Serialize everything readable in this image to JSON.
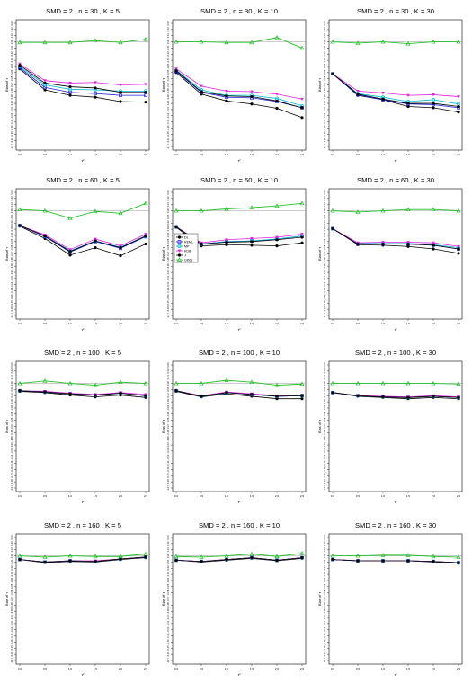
{
  "chart_data": {
    "type": "line",
    "x": [
      0.0,
      0.5,
      1.0,
      1.5,
      2.0,
      2.5
    ],
    "x_tick_labels": [
      "0.0",
      "0.5",
      "1.0",
      "1.5",
      "2.0",
      "2.5"
    ],
    "xlabel": "τ²",
    "ylabel": "Bias of τ",
    "y_tick_labels": [
      "0.03",
      "0.02",
      "0.01",
      "0.00",
      "-0.01",
      "-0.02",
      "-0.03",
      "-0.04",
      "-0.05",
      "-0.06",
      "-0.07",
      "-0.08",
      "-0.09",
      "-0.10",
      "-0.11",
      "-0.12",
      "-0.13",
      "-0.14",
      "-0.15",
      "-0.16",
      "-0.17"
    ],
    "ylim": [
      -0.17,
      0.03
    ],
    "reference_line": 0.0,
    "legend": {
      "placement": "inside panel SMD = 2, n = 60, K = 10, bottom-left",
      "entries": [
        "DL",
        "REML",
        "MP",
        "KDB",
        "J",
        "Gibbs"
      ]
    },
    "colors": {
      "DL": "#000000",
      "REML": "#2020e0",
      "MP": "#00bcd4",
      "KDB": "#e020e0",
      "J": "#000000",
      "Gibbs": "#22c02a",
      "reference": "#999999"
    },
    "panels": [
      {
        "title": "SMD = 2 , n = 30 , K = 5",
        "series": [
          {
            "name": "DL",
            "values": [
              -0.044,
              -0.078,
              -0.087,
              -0.09,
              -0.097,
              -0.098
            ]
          },
          {
            "name": "REML",
            "values": [
              -0.042,
              -0.074,
              -0.082,
              -0.084,
              -0.087,
              -0.087
            ]
          },
          {
            "name": "MP",
            "values": [
              -0.04,
              -0.07,
              -0.077,
              -0.078,
              -0.08,
              -0.08
            ]
          },
          {
            "name": "KDB",
            "values": [
              -0.036,
              -0.063,
              -0.067,
              -0.066,
              -0.07,
              -0.069
            ]
          },
          {
            "name": "J",
            "values": [
              -0.038,
              -0.067,
              -0.073,
              -0.075,
              -0.082,
              -0.082
            ]
          },
          {
            "name": "Gibbs",
            "values": [
              -0.001,
              -0.001,
              -0.001,
              0.002,
              -0.001,
              0.004
            ]
          }
        ]
      },
      {
        "title": "SMD = 2 , n = 30 , K = 10",
        "series": [
          {
            "name": "DL",
            "values": [
              -0.05,
              -0.085,
              -0.096,
              -0.101,
              -0.108,
              -0.123
            ]
          },
          {
            "name": "REML",
            "values": [
              -0.048,
              -0.082,
              -0.09,
              -0.091,
              -0.097,
              -0.107
            ]
          },
          {
            "name": "MP",
            "values": [
              -0.046,
              -0.078,
              -0.087,
              -0.087,
              -0.092,
              -0.104
            ]
          },
          {
            "name": "KDB",
            "values": [
              -0.044,
              -0.072,
              -0.08,
              -0.081,
              -0.085,
              -0.093
            ]
          },
          {
            "name": "J",
            "values": [
              -0.047,
              -0.081,
              -0.088,
              -0.089,
              -0.096,
              -0.107
            ]
          },
          {
            "name": "Gibbs",
            "values": [
              0.0,
              0.0,
              -0.001,
              -0.001,
              0.007,
              -0.01
            ]
          }
        ]
      },
      {
        "title": "SMD = 2 , n = 30 , K = 30",
        "series": [
          {
            "name": "DL",
            "values": [
              -0.052,
              -0.087,
              -0.094,
              -0.105,
              -0.107,
              -0.114
            ]
          },
          {
            "name": "REML",
            "values": [
              -0.052,
              -0.086,
              -0.094,
              -0.101,
              -0.102,
              -0.107
            ]
          },
          {
            "name": "MP",
            "values": [
              -0.052,
              -0.084,
              -0.09,
              -0.097,
              -0.094,
              -0.101
            ]
          },
          {
            "name": "KDB",
            "values": [
              -0.052,
              -0.08,
              -0.083,
              -0.087,
              -0.086,
              -0.089
            ]
          },
          {
            "name": "J",
            "values": [
              -0.052,
              -0.085,
              -0.093,
              -0.1,
              -0.1,
              -0.105
            ]
          },
          {
            "name": "Gibbs",
            "values": [
              0.0,
              -0.002,
              0.0,
              -0.003,
              0.0,
              0.0
            ]
          }
        ]
      },
      {
        "title": "SMD = 2 , n = 60 , K = 5",
        "series": [
          {
            "name": "DL",
            "values": [
              -0.025,
              -0.045,
              -0.072,
              -0.06,
              -0.073,
              -0.054
            ]
          },
          {
            "name": "REML",
            "values": [
              -0.024,
              -0.042,
              -0.067,
              -0.05,
              -0.061,
              -0.042
            ]
          },
          {
            "name": "MP",
            "values": [
              -0.024,
              -0.041,
              -0.065,
              -0.049,
              -0.059,
              -0.041
            ]
          },
          {
            "name": "KDB",
            "values": [
              -0.024,
              -0.039,
              -0.063,
              -0.046,
              -0.057,
              -0.038
            ]
          },
          {
            "name": "J",
            "values": [
              -0.024,
              -0.041,
              -0.066,
              -0.049,
              -0.06,
              -0.041
            ]
          },
          {
            "name": "Gibbs",
            "values": [
              0.002,
              0.0,
              -0.012,
              -0.001,
              -0.004,
              0.012
            ]
          }
        ]
      },
      {
        "title": "SMD = 2 , n = 60 , K = 10",
        "series": [
          {
            "name": "DL",
            "values": [
              -0.027,
              -0.057,
              -0.055,
              -0.056,
              -0.057,
              -0.052
            ]
          },
          {
            "name": "REML",
            "values": [
              -0.026,
              -0.054,
              -0.05,
              -0.049,
              -0.046,
              -0.041
            ]
          },
          {
            "name": "MP",
            "values": [
              -0.026,
              -0.054,
              -0.05,
              -0.049,
              -0.046,
              -0.041
            ]
          },
          {
            "name": "KDB",
            "values": [
              -0.026,
              -0.052,
              -0.047,
              -0.045,
              -0.043,
              -0.038
            ]
          },
          {
            "name": "J",
            "values": [
              -0.026,
              -0.054,
              -0.051,
              -0.05,
              -0.047,
              -0.043
            ]
          },
          {
            "name": "Gibbs",
            "values": [
              0.0,
              0.0,
              0.003,
              0.005,
              0.008,
              0.012
            ]
          }
        ]
      },
      {
        "title": "SMD = 2 , n = 60 , K = 30",
        "series": [
          {
            "name": "DL",
            "values": [
              -0.029,
              -0.055,
              -0.056,
              -0.058,
              -0.062,
              -0.069
            ]
          },
          {
            "name": "REML",
            "values": [
              -0.029,
              -0.054,
              -0.054,
              -0.054,
              -0.056,
              -0.062
            ]
          },
          {
            "name": "MP",
            "values": [
              -0.029,
              -0.053,
              -0.053,
              -0.053,
              -0.055,
              -0.06
            ]
          },
          {
            "name": "KDB",
            "values": [
              -0.029,
              -0.052,
              -0.051,
              -0.051,
              -0.052,
              -0.058
            ]
          },
          {
            "name": "J",
            "values": [
              -0.029,
              -0.054,
              -0.054,
              -0.054,
              -0.056,
              -0.062
            ]
          },
          {
            "name": "Gibbs",
            "values": [
              0.0,
              -0.002,
              0.0,
              0.002,
              0.002,
              0.0
            ]
          }
        ]
      },
      {
        "title": "SMD = 2 , n = 100 , K = 5",
        "series": [
          {
            "name": "DL",
            "values": [
              -0.013,
              -0.015,
              -0.019,
              -0.022,
              -0.019,
              -0.023
            ]
          },
          {
            "name": "REML",
            "values": [
              -0.012,
              -0.014,
              -0.017,
              -0.019,
              -0.016,
              -0.02
            ]
          },
          {
            "name": "MP",
            "values": [
              -0.012,
              -0.014,
              -0.017,
              -0.019,
              -0.016,
              -0.02
            ]
          },
          {
            "name": "KDB",
            "values": [
              -0.012,
              -0.013,
              -0.016,
              -0.018,
              -0.015,
              -0.018
            ]
          },
          {
            "name": "J",
            "values": [
              -0.012,
              -0.014,
              -0.017,
              -0.019,
              -0.016,
              -0.02
            ]
          },
          {
            "name": "Gibbs",
            "values": [
              0.0,
              0.004,
              0.0,
              -0.003,
              0.002,
              0.0
            ]
          }
        ]
      },
      {
        "title": "SMD = 2 , n = 100 , K = 10",
        "series": [
          {
            "name": "DL",
            "values": [
              -0.013,
              -0.022,
              -0.017,
              -0.021,
              -0.025,
              -0.025
            ]
          },
          {
            "name": "REML",
            "values": [
              -0.012,
              -0.021,
              -0.015,
              -0.018,
              -0.021,
              -0.02
            ]
          },
          {
            "name": "MP",
            "values": [
              -0.012,
              -0.021,
              -0.015,
              -0.018,
              -0.021,
              -0.02
            ]
          },
          {
            "name": "KDB",
            "values": [
              -0.012,
              -0.02,
              -0.014,
              -0.017,
              -0.02,
              -0.019
            ]
          },
          {
            "name": "J",
            "values": [
              -0.012,
              -0.021,
              -0.015,
              -0.018,
              -0.021,
              -0.02
            ]
          },
          {
            "name": "Gibbs",
            "values": [
              0.0,
              0.0,
              0.005,
              0.002,
              -0.003,
              -0.001
            ]
          }
        ]
      },
      {
        "title": "SMD = 2 , n = 100 , K = 30",
        "series": [
          {
            "name": "DL",
            "values": [
              -0.015,
              -0.021,
              -0.023,
              -0.025,
              -0.023,
              -0.025
            ]
          },
          {
            "name": "REML",
            "values": [
              -0.015,
              -0.02,
              -0.022,
              -0.023,
              -0.021,
              -0.023
            ]
          },
          {
            "name": "MP",
            "values": [
              -0.015,
              -0.02,
              -0.022,
              -0.023,
              -0.021,
              -0.023
            ]
          },
          {
            "name": "KDB",
            "values": [
              -0.015,
              -0.02,
              -0.021,
              -0.022,
              -0.02,
              -0.022
            ]
          },
          {
            "name": "J",
            "values": [
              -0.015,
              -0.02,
              -0.022,
              -0.023,
              -0.021,
              -0.023
            ]
          },
          {
            "name": "Gibbs",
            "values": [
              0.0,
              0.0,
              0.0,
              0.0,
              0.0,
              -0.001
            ]
          }
        ]
      },
      {
        "title": "SMD = 2 , n = 160 , K = 5",
        "series": [
          {
            "name": "DL",
            "values": [
              -0.006,
              -0.011,
              -0.009,
              -0.01,
              -0.006,
              -0.003
            ]
          },
          {
            "name": "REML",
            "values": [
              -0.006,
              -0.01,
              -0.008,
              -0.009,
              -0.005,
              -0.002
            ]
          },
          {
            "name": "MP",
            "values": [
              -0.006,
              -0.01,
              -0.008,
              -0.009,
              -0.005,
              -0.002
            ]
          },
          {
            "name": "KDB",
            "values": [
              -0.006,
              -0.01,
              -0.008,
              -0.008,
              -0.005,
              -0.002
            ]
          },
          {
            "name": "J",
            "values": [
              -0.006,
              -0.01,
              -0.008,
              -0.009,
              -0.005,
              -0.002
            ]
          },
          {
            "name": "Gibbs",
            "values": [
              0.0,
              -0.002,
              0.0,
              -0.001,
              -0.001,
              0.003
            ]
          }
        ]
      },
      {
        "title": "SMD = 2 , n = 160 , K = 10",
        "series": [
          {
            "name": "DL",
            "values": [
              -0.007,
              -0.01,
              -0.007,
              -0.004,
              -0.008,
              -0.004
            ]
          },
          {
            "name": "REML",
            "values": [
              -0.007,
              -0.009,
              -0.006,
              -0.003,
              -0.007,
              -0.003
            ]
          },
          {
            "name": "MP",
            "values": [
              -0.007,
              -0.009,
              -0.006,
              -0.003,
              -0.007,
              -0.003
            ]
          },
          {
            "name": "KDB",
            "values": [
              -0.007,
              -0.009,
              -0.006,
              -0.003,
              -0.007,
              -0.003
            ]
          },
          {
            "name": "J",
            "values": [
              -0.007,
              -0.009,
              -0.006,
              -0.003,
              -0.007,
              -0.003
            ]
          },
          {
            "name": "Gibbs",
            "values": [
              -0.001,
              -0.002,
              0.0,
              0.003,
              -0.001,
              0.004
            ]
          }
        ]
      },
      {
        "title": "SMD = 2 , n = 160 , K = 30",
        "series": [
          {
            "name": "DL",
            "values": [
              -0.006,
              -0.008,
              -0.008,
              -0.008,
              -0.01,
              -0.012
            ]
          },
          {
            "name": "REML",
            "values": [
              -0.006,
              -0.008,
              -0.008,
              -0.008,
              -0.009,
              -0.011
            ]
          },
          {
            "name": "MP",
            "values": [
              -0.006,
              -0.008,
              -0.008,
              -0.008,
              -0.009,
              -0.011
            ]
          },
          {
            "name": "KDB",
            "values": [
              -0.006,
              -0.008,
              -0.008,
              -0.008,
              -0.009,
              -0.011
            ]
          },
          {
            "name": "J",
            "values": [
              -0.006,
              -0.008,
              -0.008,
              -0.008,
              -0.009,
              -0.011
            ]
          },
          {
            "name": "Gibbs",
            "values": [
              0.0,
              0.0,
              0.001,
              0.001,
              -0.001,
              -0.002
            ]
          }
        ]
      }
    ]
  }
}
